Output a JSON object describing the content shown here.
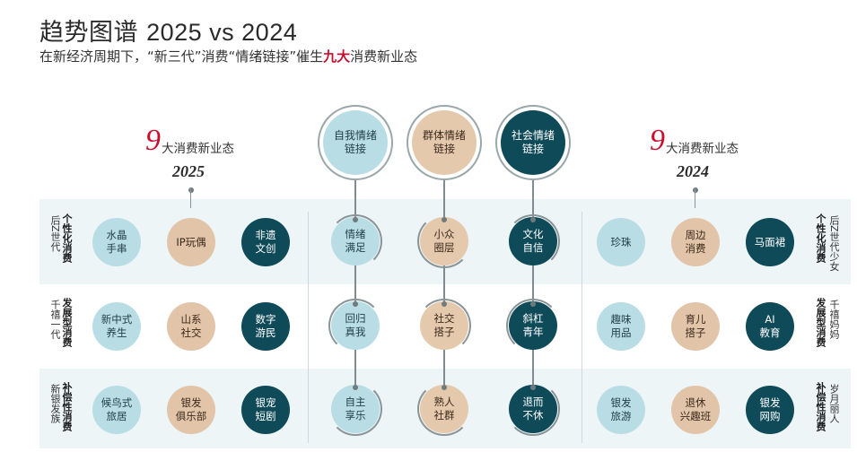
{
  "header": {
    "title_main": "趋势图谱",
    "title_years": "2025 vs 2024",
    "subtitle_a": "在新经济周期下，“新三代”消费“情绪链接”催生",
    "subtitle_hl": "九大",
    "subtitle_b": "消费新业态"
  },
  "left": {
    "num": "9",
    "label": "大消费新业态",
    "year": "2025",
    "rows": [
      {
        "group": "后Z世代",
        "category": "个性化消费",
        "items": [
          "水晶\n手串",
          "IP玩偶",
          "非遗\n文创"
        ]
      },
      {
        "group": "千禧一代",
        "category": "发展型消费",
        "items": [
          "新中式\n养生",
          "山系\n社交",
          "数字\n游民"
        ]
      },
      {
        "group": "新银发族",
        "category": "补偿性消费",
        "items": [
          "候鸟式\n旅居",
          "银发\n俱乐部",
          "银宠\n短剧"
        ]
      }
    ]
  },
  "center": {
    "columns": [
      {
        "head": "自我情绪\n链接",
        "items": [
          "情绪\n满足",
          "回归\n真我",
          "自主\n享乐"
        ]
      },
      {
        "head": "群体情绪\n链接",
        "items": [
          "小众\n圈层",
          "社交\n搭子",
          "熟人\n社群"
        ]
      },
      {
        "head": "社会情绪\n链接",
        "items": [
          "文化\n自信",
          "斜杠\n青年",
          "退而\n不休"
        ]
      }
    ]
  },
  "right": {
    "num": "9",
    "label": "大消费新业态",
    "year": "2024",
    "rows": [
      {
        "group": "后Z世代少女",
        "category": "个性化消费",
        "items": [
          "珍珠",
          "周边\n消费",
          "马面裙"
        ]
      },
      {
        "group": "千禧妈妈",
        "category": "发展型消费",
        "items": [
          "趣味\n用品",
          "育儿\n搭子",
          "AI\n教育"
        ]
      },
      {
        "group": "岁月丽人",
        "category": "补偿性消费",
        "items": [
          "银发\n旅游",
          "退休\n兴趣班",
          "银发\n网购"
        ]
      }
    ]
  },
  "colors": {
    "light": "#b9dde5",
    "beige": "#e2c4a8",
    "dark": "#0f4a58",
    "accent": "#c8102e"
  }
}
